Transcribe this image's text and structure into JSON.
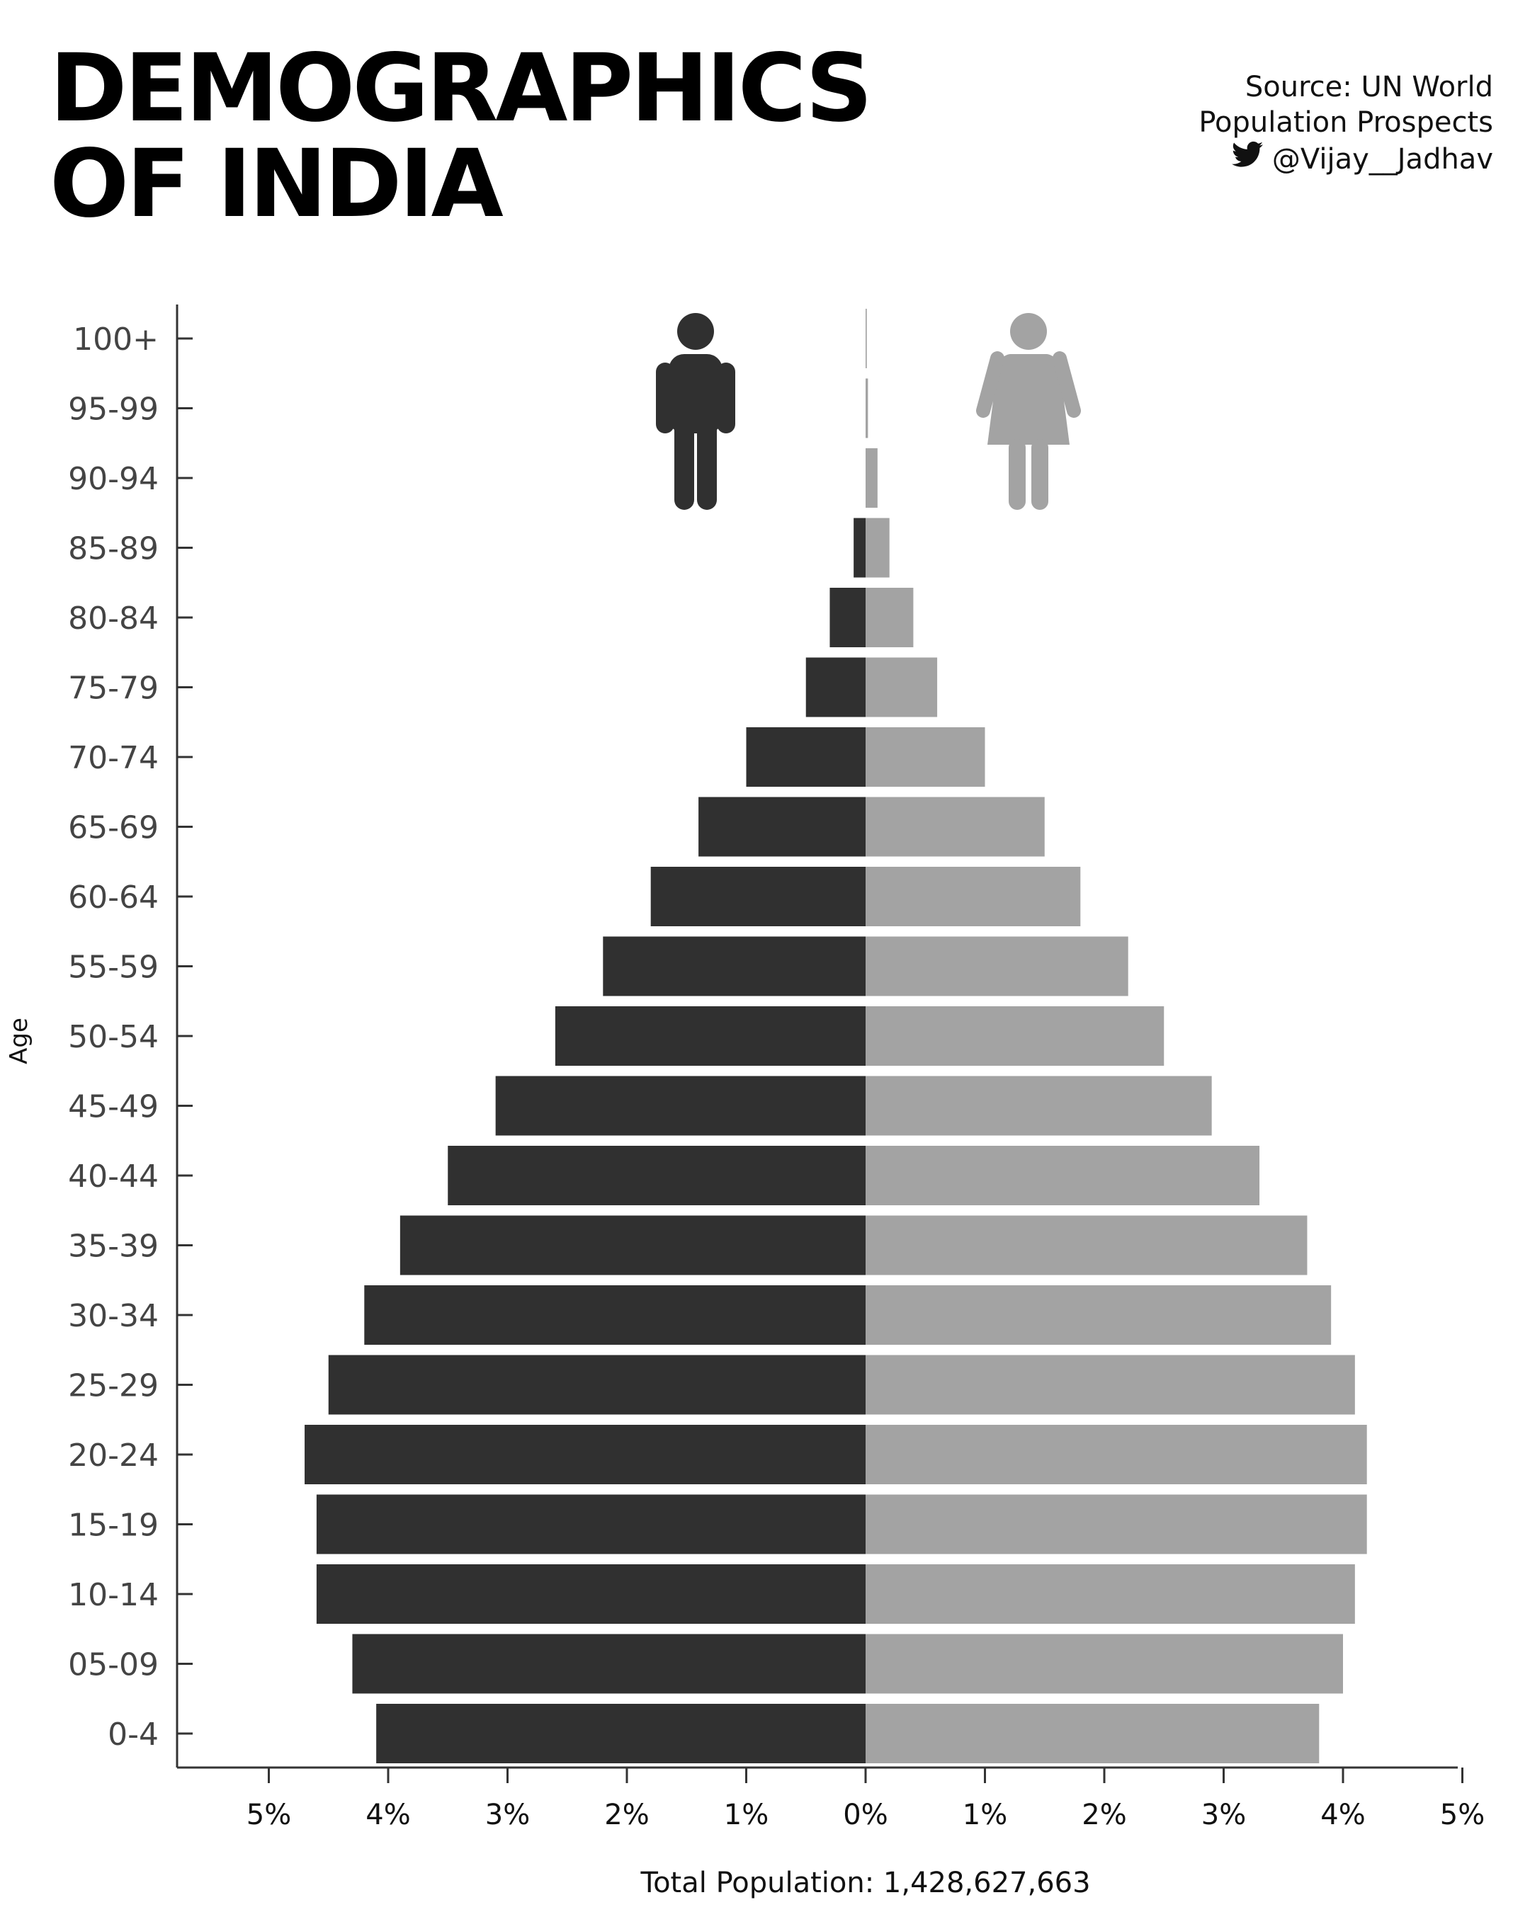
{
  "header": {
    "title_line1": "DEMOGRAPHICS",
    "title_line2": "OF INDIA",
    "source_line1": "Source: UN World",
    "source_line2": "Population Prospects",
    "handle": "@Vijay__Jadhav",
    "handle_icon": "twitter-bird-icon"
  },
  "colors": {
    "male": "#303030",
    "female": "#a3a3a3",
    "axis": "#333333"
  },
  "chart_data": {
    "type": "bar",
    "orientation": "horizontal-population-pyramid",
    "ylabel": "Age",
    "xlabel": "Total Population: 1,428,627,663",
    "categories": [
      "100+",
      "95-99",
      "90-94",
      "85-89",
      "80-84",
      "75-79",
      "70-74",
      "65-69",
      "60-64",
      "55-59",
      "50-54",
      "45-49",
      "40-44",
      "35-39",
      "30-34",
      "25-29",
      "20-24",
      "15-19",
      "10-14",
      "05-09",
      "0-4"
    ],
    "series": [
      {
        "name": "",
        "icon": "male-icon",
        "side": "left",
        "values": [
          0.0,
          0.0,
          0.0,
          0.1,
          0.3,
          0.5,
          1.0,
          1.4,
          1.8,
          2.2,
          2.6,
          3.1,
          3.5,
          3.9,
          4.2,
          4.5,
          4.7,
          4.6,
          4.6,
          4.3,
          4.1
        ]
      },
      {
        "name": "",
        "icon": "female-icon",
        "side": "right",
        "values": [
          0.01,
          0.02,
          0.1,
          0.2,
          0.4,
          0.6,
          1.0,
          1.5,
          1.8,
          2.2,
          2.5,
          2.9,
          3.3,
          3.7,
          3.9,
          4.1,
          4.2,
          4.2,
          4.1,
          4.0,
          3.8
        ]
      }
    ],
    "xticks": [
      "5%",
      "4%",
      "3%",
      "2%",
      "1%",
      "0%",
      "1%",
      "2%",
      "3%",
      "4%",
      "5%"
    ],
    "xlim": [
      -5,
      5
    ],
    "unit": "%",
    "grid": false,
    "legend": "icons at top center"
  }
}
